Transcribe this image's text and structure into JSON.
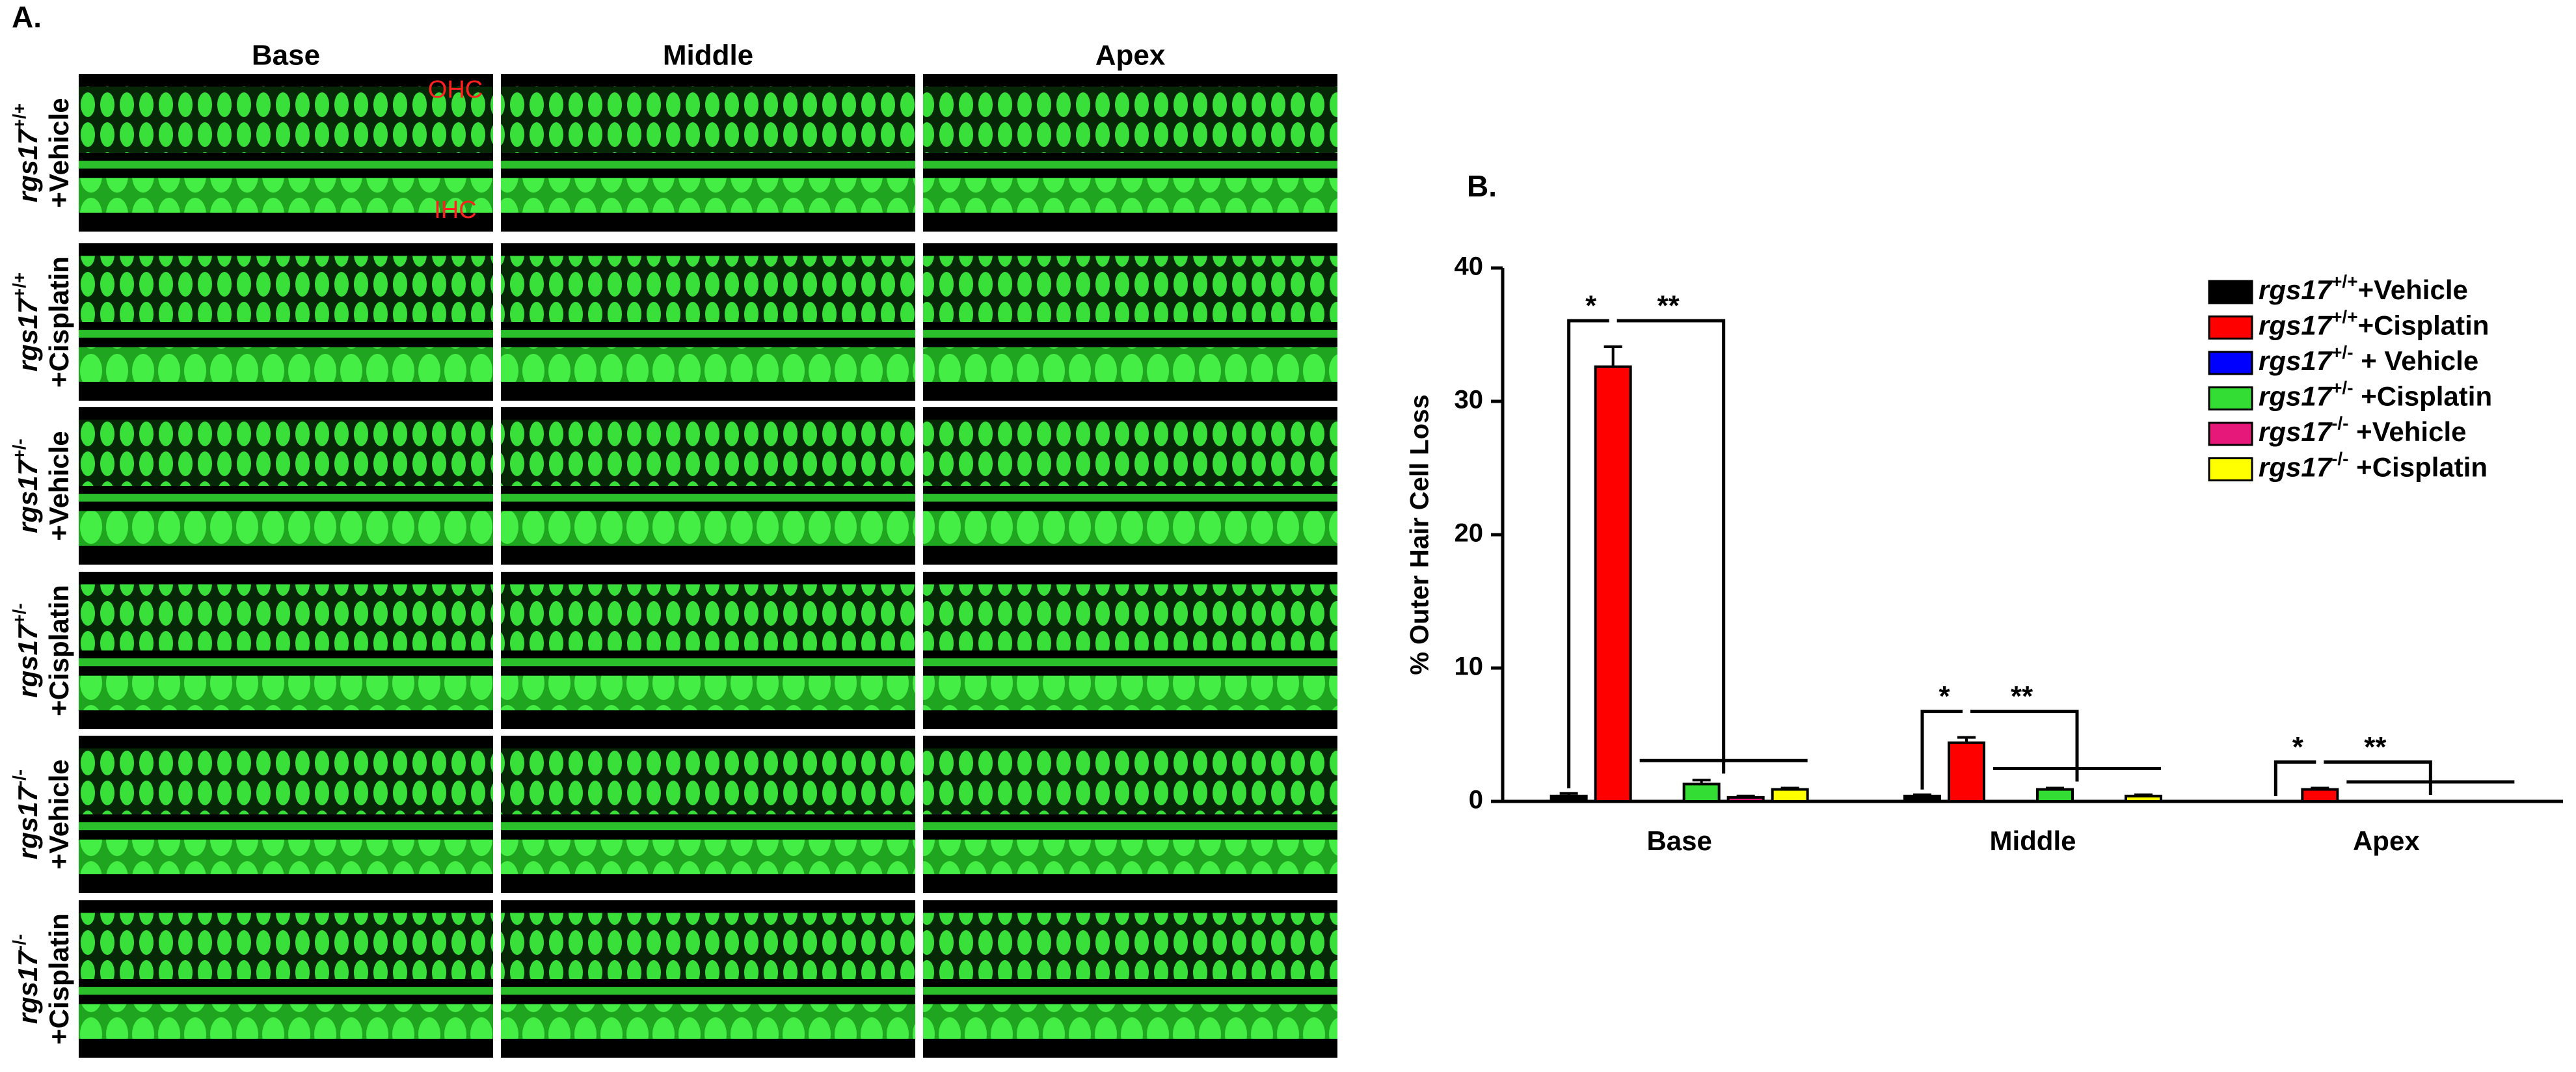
{
  "panel_a": {
    "label": "A.",
    "columns": [
      "Base",
      "Middle",
      "Apex"
    ],
    "rows": [
      {
        "gene": "rgs17",
        "genotype": "+/+",
        "treatment": "+Vehicle"
      },
      {
        "gene": "rgs17",
        "genotype": "+/+",
        "treatment": "+Cisplatin"
      },
      {
        "gene": "rgs17",
        "genotype": "+/-",
        "treatment": "+Vehicle"
      },
      {
        "gene": "rgs17",
        "genotype": "+/-",
        "treatment": "+Cisplatin"
      },
      {
        "gene": "rgs17",
        "genotype": "-/-",
        "treatment": "+Vehicle"
      },
      {
        "gene": "rgs17",
        "genotype": "-/-",
        "treatment": "+Cisplatin"
      }
    ],
    "annotations": [
      "OHC",
      "IHC"
    ]
  },
  "chart_data": {
    "type": "bar",
    "panel_label": "B.",
    "ylabel": "% Outer Hair Cell Loss",
    "categories": [
      "Base",
      "Middle",
      "Apex"
    ],
    "series": [
      {
        "name": "rgs17+/++Vehicle",
        "color": "#000000",
        "values": [
          0.4,
          0.4,
          0
        ],
        "errors": [
          0.2,
          0.1,
          0
        ]
      },
      {
        "name": "rgs17+/++Cisplatin",
        "color": "#ff0000",
        "values": [
          32.6,
          4.4,
          0.9
        ],
        "errors": [
          1.5,
          0.4,
          0.1
        ]
      },
      {
        "name": "rgs17+/- + Vehicle",
        "color": "#0000ff",
        "values": [
          0,
          0,
          0
        ],
        "errors": [
          0,
          0,
          0
        ]
      },
      {
        "name": "rgs17+/- +Cisplatin",
        "color": "#33dd33",
        "values": [
          1.3,
          0.9,
          0
        ],
        "errors": [
          0.3,
          0.1,
          0
        ]
      },
      {
        "name": "rgs17-/- +Vehicle",
        "color": "#e6197a",
        "values": [
          0.3,
          0,
          0
        ],
        "errors": [
          0.1,
          0,
          0
        ]
      },
      {
        "name": "rgs17-/- +Cisplatin",
        "color": "#ffff00",
        "values": [
          0.9,
          0.4,
          0
        ],
        "errors": [
          0.1,
          0.1,
          0
        ]
      }
    ],
    "significance": [
      [
        "*",
        "**"
      ],
      [
        "*",
        "**"
      ],
      [
        "*",
        "**"
      ]
    ],
    "ylim": [
      0,
      40
    ],
    "yticks": [
      0,
      10,
      20,
      30,
      40
    ],
    "legend": "upper-right"
  }
}
